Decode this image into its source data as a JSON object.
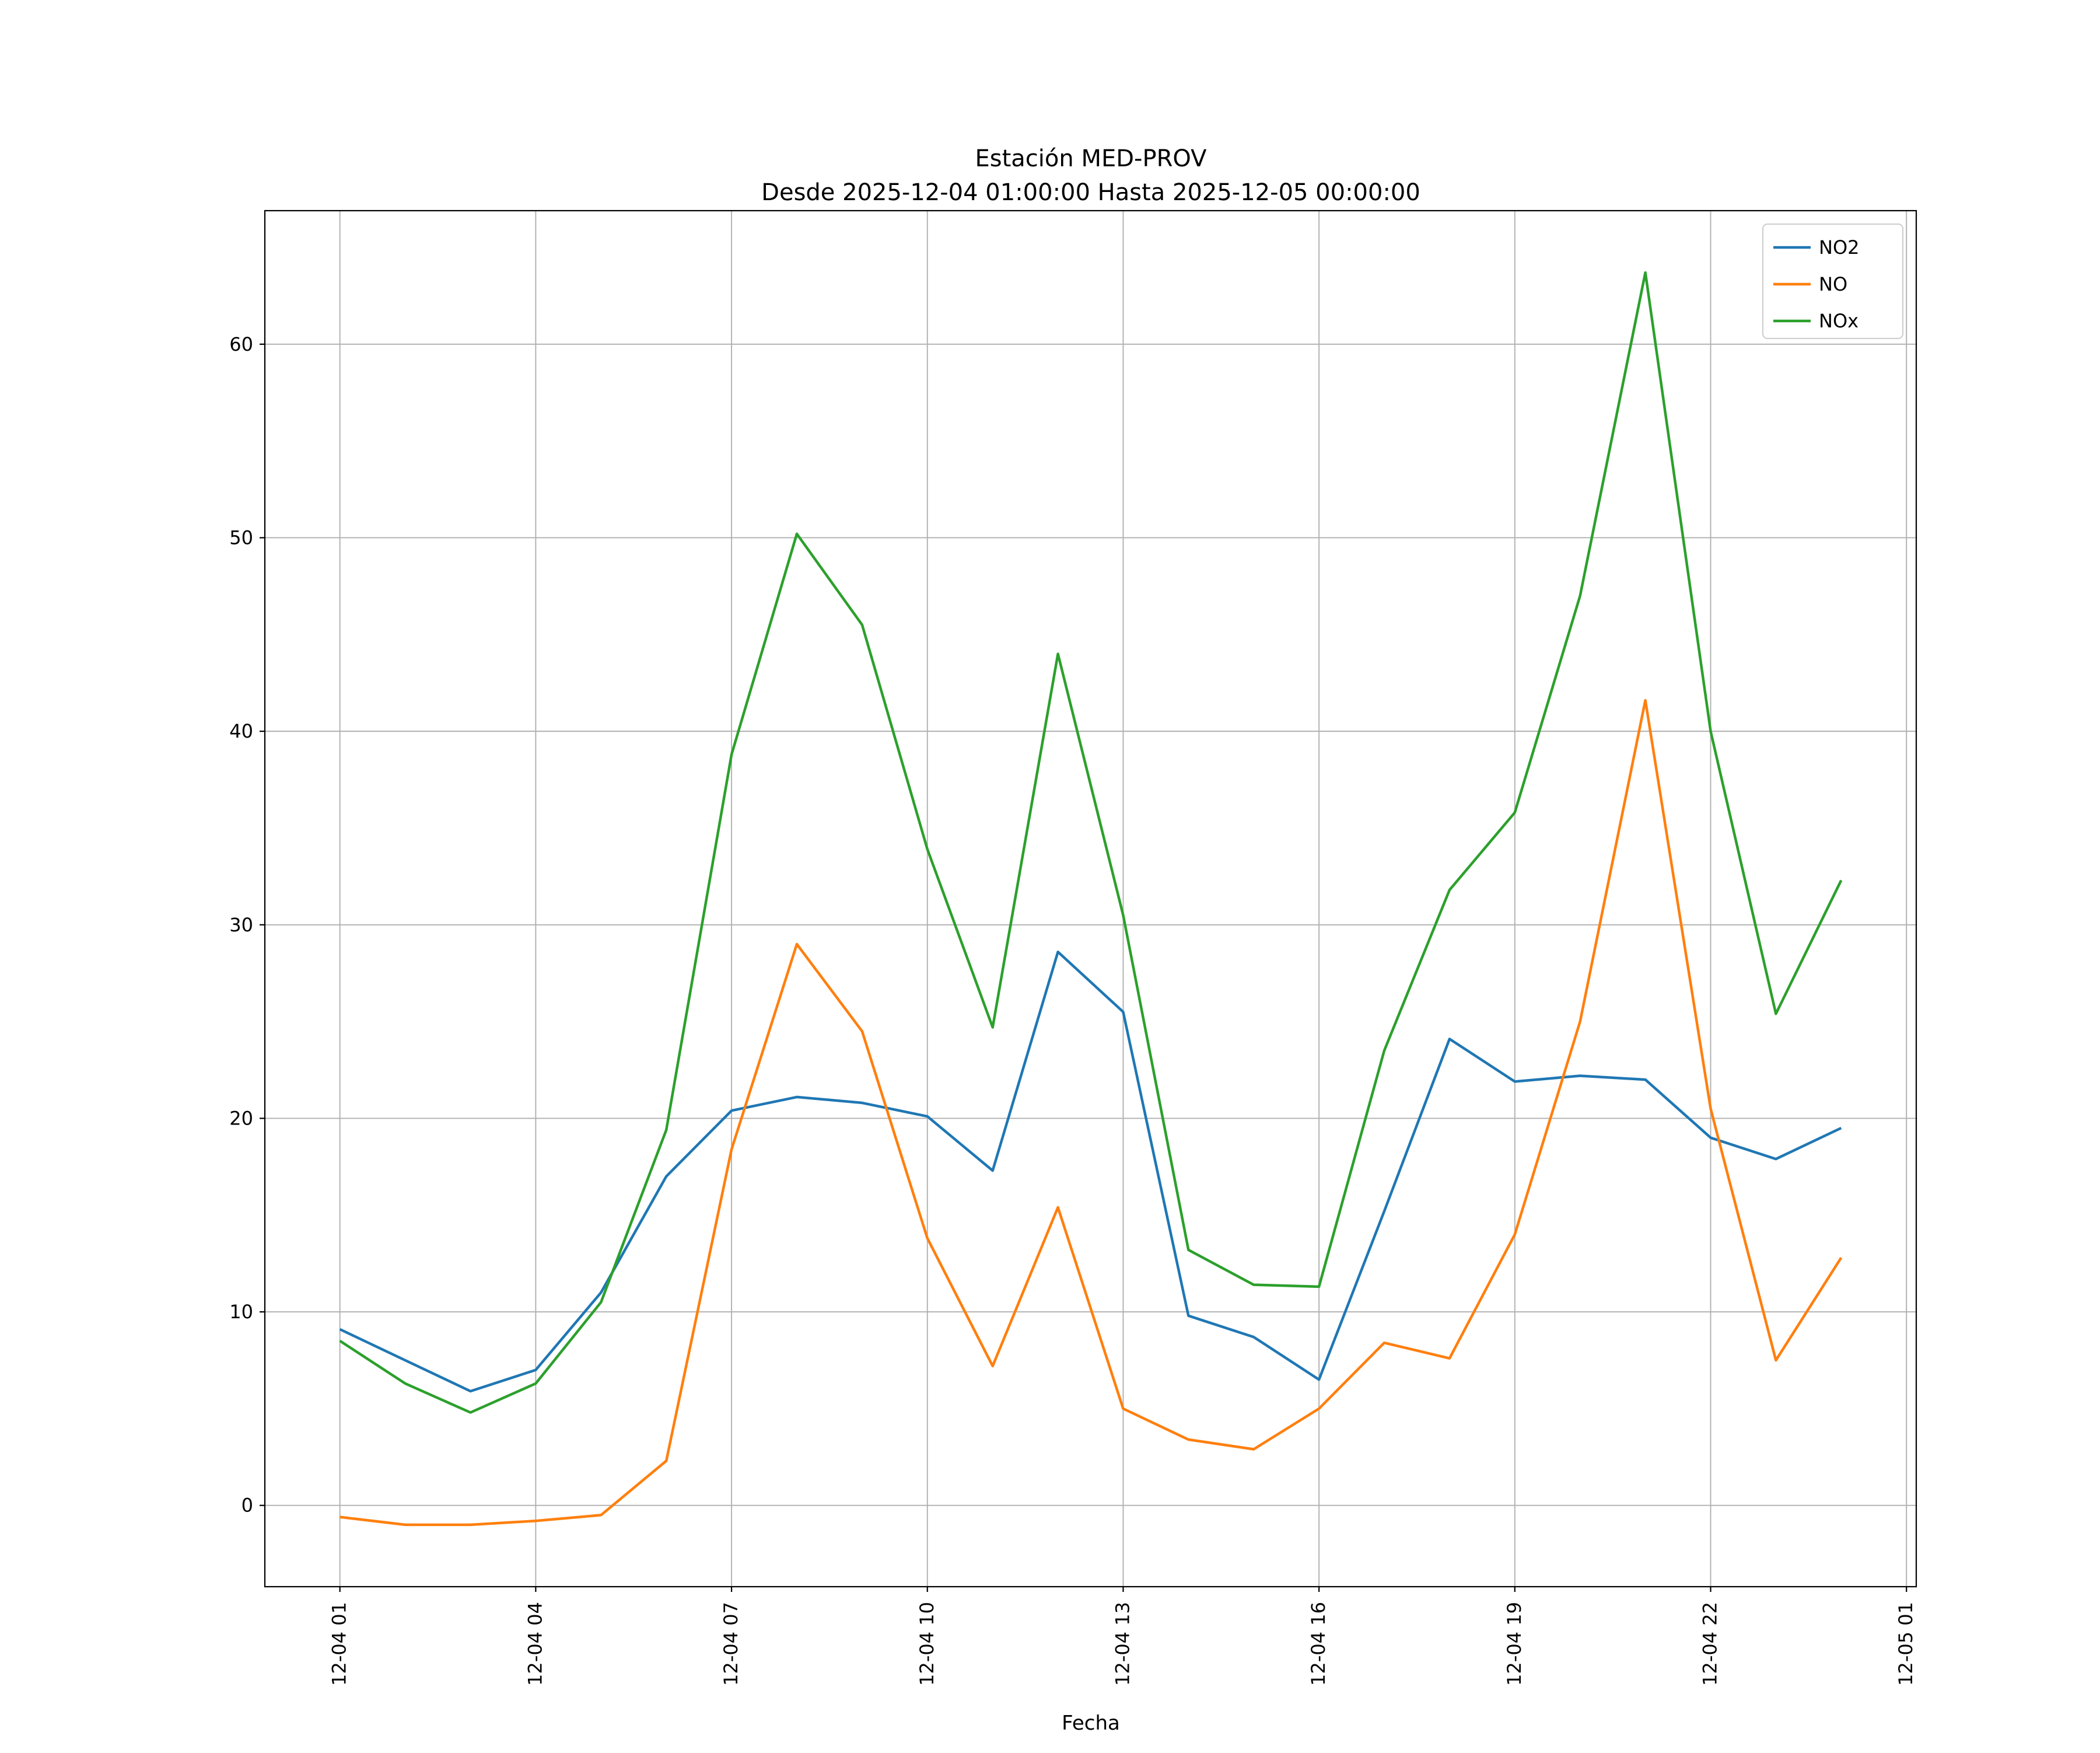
{
  "figure": {
    "title_line1": "Estación MED-PROV",
    "title_line2": "Desde 2025-12-04 01:00:00 Hasta 2025-12-05 00:00:00"
  },
  "chart_data": {
    "type": "line",
    "title": "Estación MED-PROV\nDesde 2025-12-04 01:00:00 Hasta 2025-12-05 00:00:00",
    "xlabel": "Fecha",
    "ylabel": "",
    "grid": true,
    "legend_position": "upper right",
    "xlim_hours": [
      -0.15,
      25.15
    ],
    "ylim": [
      -4.2,
      66.9
    ],
    "x_tick_hours": [
      1,
      4,
      7,
      10,
      13,
      16,
      19,
      22,
      25
    ],
    "x_tick_labels": [
      "12-04 01",
      "12-04 04",
      "12-04 07",
      "12-04 10",
      "12-04 13",
      "12-04 16",
      "12-04 19",
      "12-04 22",
      "12-05 01"
    ],
    "y_ticks": [
      0,
      10,
      20,
      30,
      40,
      50,
      60
    ],
    "x_hours": [
      1,
      2,
      3,
      4,
      5,
      6,
      7,
      8,
      9,
      10,
      11,
      12,
      13,
      14,
      15,
      16,
      17,
      18,
      19,
      20,
      21,
      22,
      23,
      24
    ],
    "series": [
      {
        "name": "NO2",
        "color": "#1f77b4",
        "values": [
          9.1,
          7.5,
          5.9,
          7.0,
          11.0,
          17.0,
          20.4,
          21.1,
          20.8,
          20.1,
          17.3,
          28.6,
          25.5,
          9.8,
          8.7,
          6.5,
          15.2,
          24.1,
          21.9,
          22.2,
          22.0,
          19.0,
          17.9,
          19.5
        ]
      },
      {
        "name": "NO",
        "color": "#ff7f0e",
        "values": [
          -0.6,
          -1.0,
          -1.0,
          -0.8,
          -0.5,
          2.3,
          18.4,
          29.0,
          24.5,
          13.8,
          7.2,
          15.4,
          5.0,
          3.4,
          2.9,
          5.0,
          8.4,
          7.6,
          14.0,
          25.0,
          41.6,
          20.5,
          7.5,
          12.8
        ]
      },
      {
        "name": "NOx",
        "color": "#2ca02c",
        "values": [
          8.5,
          6.3,
          4.8,
          6.3,
          10.5,
          19.4,
          38.8,
          50.2,
          45.5,
          33.9,
          24.7,
          44.0,
          30.5,
          13.2,
          11.4,
          11.3,
          23.5,
          31.8,
          35.8,
          47.0,
          63.7,
          40.0,
          25.4,
          32.3
        ]
      }
    ]
  }
}
